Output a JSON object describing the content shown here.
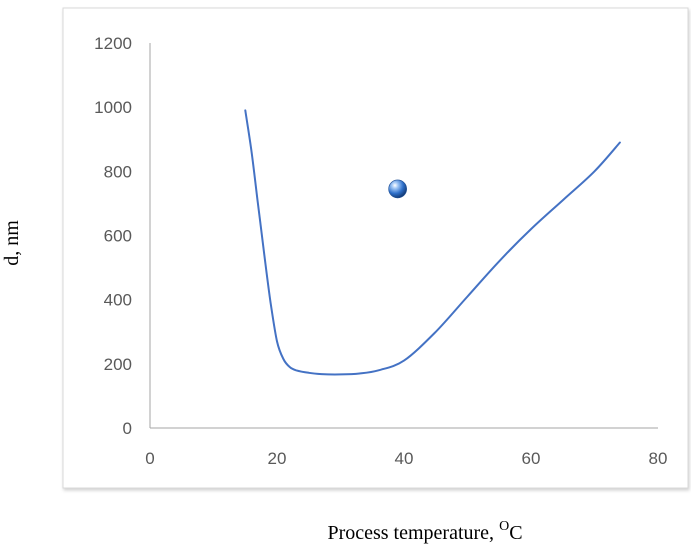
{
  "chart_data": {
    "type": "line",
    "title": "",
    "xlabel": "Process temperature, ",
    "xlabel_sup": "O",
    "xlabel_unit": "C",
    "ylabel": "d, nm",
    "xlim": [
      0,
      80
    ],
    "ylim": [
      0,
      1200
    ],
    "x_ticks": [
      "0",
      "20",
      "40",
      "60",
      "80"
    ],
    "y_ticks": [
      "0",
      "200",
      "400",
      "600",
      "800",
      "1000",
      "1200"
    ],
    "grid": false,
    "legend": "none",
    "series": [
      {
        "color": "#4472C4",
        "x": [
          15,
          16,
          17,
          18,
          19,
          20,
          21,
          22,
          23,
          25,
          27,
          30,
          33,
          36,
          40,
          45,
          50,
          55,
          60,
          65,
          70,
          74
        ],
        "y": [
          990,
          860,
          700,
          540,
          390,
          270,
          215,
          190,
          180,
          172,
          168,
          167,
          170,
          180,
          210,
          300,
          410,
          520,
          620,
          710,
          800,
          890
        ]
      }
    ],
    "marker_point": {
      "x": 39,
      "y": 745,
      "color": "#2E6FC9"
    }
  }
}
